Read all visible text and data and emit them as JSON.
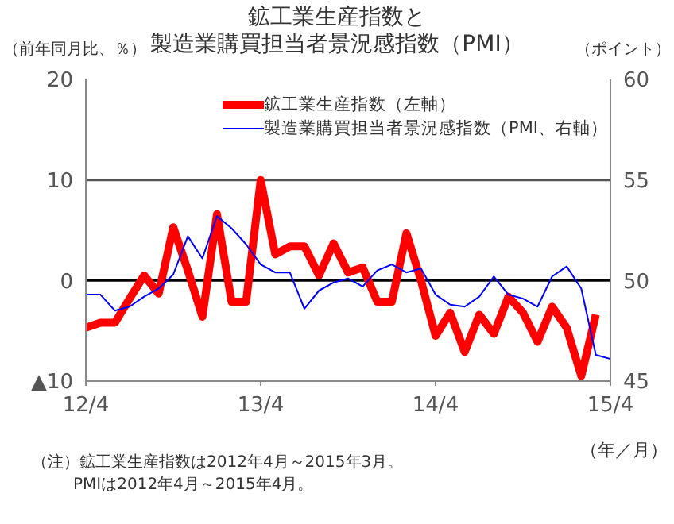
{
  "chart_data": {
    "type": "line",
    "title": "鉱工業生産指数と",
    "subtitle": "製造業購買担当者景況感指数（PMI）",
    "ylabel": "（前年同月比、％）",
    "y2label": "（ポイント）",
    "xlabel": "（年／月）",
    "x": [
      "2012-04",
      "2012-05",
      "2012-06",
      "2012-07",
      "2012-08",
      "2012-09",
      "2012-10",
      "2012-11",
      "2012-12",
      "2013-01",
      "2013-02",
      "2013-03",
      "2013-04",
      "2013-05",
      "2013-06",
      "2013-07",
      "2013-08",
      "2013-09",
      "2013-10",
      "2013-11",
      "2013-12",
      "2014-01",
      "2014-02",
      "2014-03",
      "2014-04",
      "2014-05",
      "2014-06",
      "2014-07",
      "2014-08",
      "2014-09",
      "2014-10",
      "2014-11",
      "2014-12",
      "2015-01",
      "2015-02",
      "2015-03",
      "2015-04"
    ],
    "series": [
      {
        "name": "鉱工業生産指数（左軸）",
        "color": "#ff0000",
        "values": [
          -4.7,
          -4.2,
          -4.2,
          -1.8,
          0.5,
          -1.3,
          5.3,
          1,
          -3.6,
          6.6,
          -2.1,
          -2.1,
          10,
          2.6,
          3.4,
          3.4,
          0.5,
          3.7,
          0.8,
          1.3,
          -2.1,
          -2.1,
          4.7,
          0,
          -5.5,
          -3.2,
          -7.1,
          -3.4,
          -5.3,
          -1.6,
          -3.2,
          -6.1,
          -2.6,
          -4.7,
          -9.5,
          -3.4,
          null
        ]
      },
      {
        "name": "製造業購買担当者景況感指数（PMI、右軸）",
        "color": "#0000ff",
        "axis": "y2",
        "values": [
          49.3,
          49.3,
          48.5,
          48.7,
          49.2,
          49.6,
          50.3,
          52.2,
          51.1,
          53.2,
          52.6,
          51.8,
          50.8,
          50.4,
          50.4,
          48.6,
          49.5,
          49.9,
          50.1,
          49.7,
          50.5,
          50.8,
          50.4,
          50.6,
          49.3,
          48.8,
          48.7,
          49.2,
          50.2,
          49.3,
          49.1,
          48.7,
          50.2,
          50.7,
          49.6,
          46.3,
          46.1
        ]
      }
    ],
    "xlim": [
      "2012-04",
      "2015-04"
    ],
    "xticks": [
      {
        "value": "2012-04",
        "label": "12/4"
      },
      {
        "value": "2013-04",
        "label": "13/4"
      },
      {
        "value": "2014-04",
        "label": "14/4"
      },
      {
        "value": "2015-04",
        "label": "15/4"
      }
    ],
    "ylim": [
      -10,
      20
    ],
    "yticks": [
      {
        "value": -10,
        "label": "▲10"
      },
      0,
      10,
      20
    ],
    "y2lim": [
      45,
      60
    ],
    "y2ticks": [
      45,
      50,
      55,
      60
    ],
    "ref_lines": [
      {
        "axis": "y",
        "value": 0,
        "color": "#000000"
      },
      {
        "axis": "y",
        "value": 10,
        "color": "#555555"
      }
    ],
    "legend": "top right",
    "annotations": [
      "（注）鉱工業生産指数は2012年4月～2015年3月。",
      "PMIは2012年4月～2015年4月。"
    ]
  }
}
